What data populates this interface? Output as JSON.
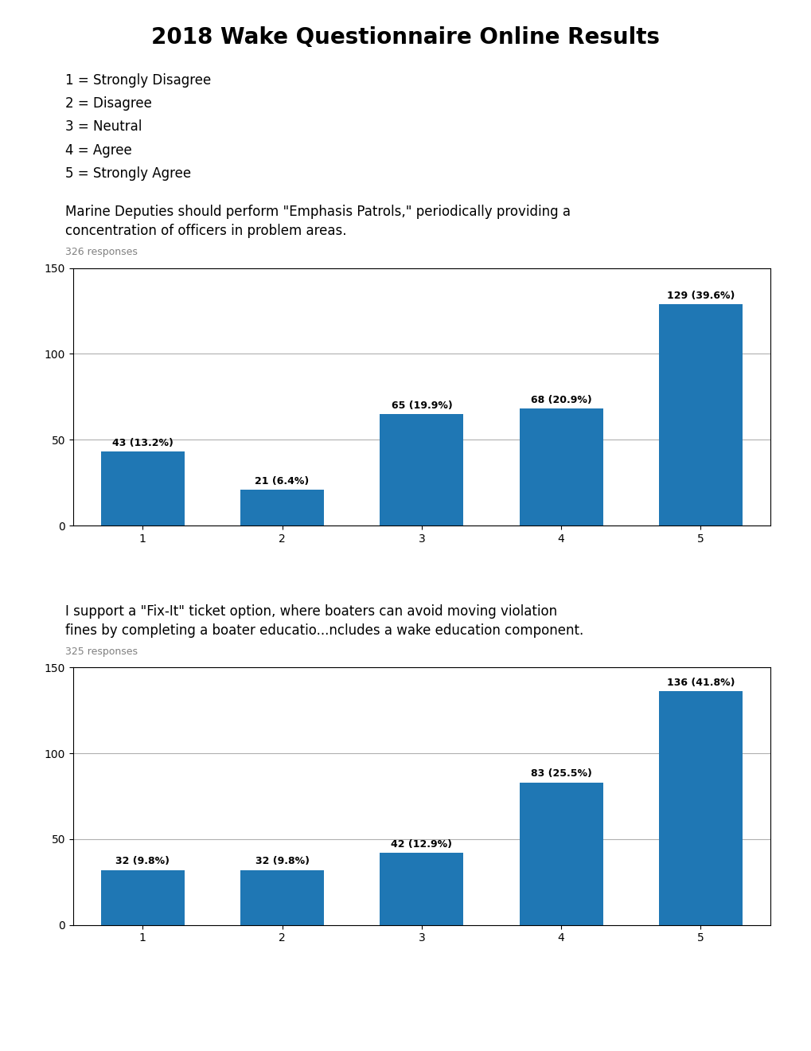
{
  "title": "2018 Wake Questionnaire Online Results",
  "annotations": [
    "1 = Strongly Disagree",
    "2 = Disagree",
    "3 = Neutral",
    "4 = Agree",
    "5 = Strongly Agree"
  ],
  "chart_data": [
    {
      "type": "bar",
      "title": "Marine Deputies should perform \"Emphasis Patrols,\" periodically providing a\nconcentration of officers in problem areas.",
      "subtitle": "326 responses",
      "categories": [
        "1",
        "2",
        "3",
        "4",
        "5"
      ],
      "values": [
        43,
        21,
        65,
        68,
        129
      ],
      "value_labels": [
        "43 (13.2%)",
        "21 (6.4%)",
        "65 (19.9%)",
        "68 (20.9%)",
        "129 (39.6%)"
      ],
      "data_labels": true,
      "ylim": [
        0,
        150
      ],
      "yticks": [
        0,
        50,
        100,
        150
      ],
      "grid": true
    },
    {
      "type": "bar",
      "title": "I support a \"Fix-It\" ticket option, where boaters can avoid moving violation\nfines by completing a boater educatio...ncludes a wake education component.",
      "subtitle": "325 responses",
      "categories": [
        "1",
        "2",
        "3",
        "4",
        "5"
      ],
      "values": [
        32,
        32,
        42,
        83,
        136
      ],
      "value_labels": [
        "32 (9.8%)",
        "32 (9.8%)",
        "42 (12.9%)",
        "83 (25.5%)",
        "136 (41.8%)"
      ],
      "data_labels": true,
      "ylim": [
        0,
        150
      ],
      "yticks": [
        0,
        50,
        100,
        150
      ],
      "grid": true
    }
  ]
}
